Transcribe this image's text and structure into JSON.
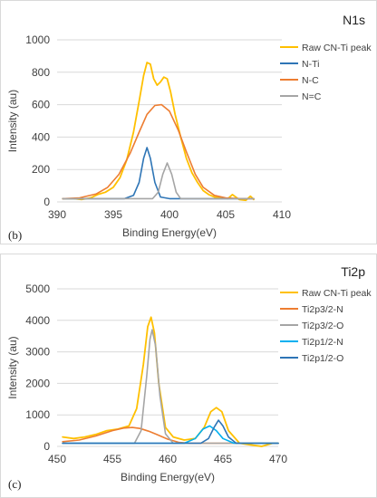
{
  "chart_data": [
    {
      "type": "line",
      "title": "N1s",
      "panel_label": "(b)",
      "xlabel": "Binding Energy(eV)",
      "ylabel": "Intensity (au)",
      "xlim": [
        390,
        410
      ],
      "ylim": [
        0,
        1000
      ],
      "xticks": [
        390,
        395,
        400,
        405,
        410
      ],
      "yticks": [
        0,
        200,
        400,
        600,
        800,
        1000
      ],
      "legend_position": "right",
      "grid": "horizontal",
      "series": [
        {
          "name": "Raw CN-Ti peak",
          "color": "#FFC000",
          "x": [
            390.5,
            391.5,
            392.2,
            393,
            393.6,
            394.3,
            395,
            395.6,
            396.2,
            396.8,
            397.3,
            397.7,
            398,
            398.3,
            398.6,
            398.9,
            399.2,
            399.5,
            399.8,
            400.1,
            400.5,
            401,
            401.5,
            402,
            402.5,
            403,
            403.5,
            404,
            404.6,
            405.2,
            405.6,
            406.2,
            406.8,
            407.2,
            407.5
          ],
          "y": [
            20,
            20,
            15,
            25,
            45,
            60,
            90,
            150,
            260,
            430,
            620,
            780,
            860,
            850,
            760,
            720,
            740,
            770,
            760,
            680,
            540,
            400,
            270,
            180,
            120,
            70,
            45,
            30,
            25,
            20,
            45,
            15,
            10,
            35,
            15
          ]
        },
        {
          "name": "N-Ti",
          "color": "#2E75B6",
          "x": [
            390.5,
            396,
            396.8,
            397.3,
            397.7,
            398,
            398.3,
            398.7,
            399.2,
            400,
            407.5
          ],
          "y": [
            20,
            20,
            40,
            120,
            270,
            335,
            270,
            120,
            30,
            20,
            20
          ]
        },
        {
          "name": "N-C",
          "color": "#ED7D31",
          "x": [
            390.5,
            392,
            393.5,
            394.5,
            395.5,
            396.5,
            397.3,
            398,
            398.7,
            399.3,
            400,
            400.8,
            401.5,
            402.3,
            403,
            404,
            405,
            406.5,
            407.5
          ],
          "y": [
            20,
            25,
            50,
            90,
            170,
            300,
            430,
            540,
            595,
            600,
            560,
            440,
            310,
            170,
            90,
            40,
            25,
            20,
            20
          ]
        },
        {
          "name": "N=C",
          "color": "#A5A5A5",
          "x": [
            390.5,
            398.5,
            399,
            399.4,
            399.8,
            400.2,
            400.6,
            401,
            407.5
          ],
          "y": [
            20,
            20,
            60,
            170,
            240,
            170,
            60,
            20,
            20
          ]
        }
      ]
    },
    {
      "type": "line",
      "title": "Ti2p",
      "panel_label": "(c)",
      "xlabel": "Binding Energy(eV)",
      "ylabel": "Intensity (au)",
      "xlim": [
        450,
        470
      ],
      "ylim": [
        0,
        5000
      ],
      "xticks": [
        450,
        455,
        460,
        465,
        470
      ],
      "yticks": [
        0,
        1000,
        2000,
        3000,
        4000,
        5000
      ],
      "legend_position": "right",
      "grid": "horizontal",
      "series": [
        {
          "name": "Raw CN-Ti peak",
          "color": "#FFC000",
          "x": [
            450.5,
            451.5,
            452.5,
            453.5,
            454.5,
            455.5,
            456.5,
            457.2,
            457.8,
            458.2,
            458.5,
            458.8,
            459.2,
            459.8,
            460.5,
            461.5,
            462.5,
            463.3,
            463.9,
            464.4,
            464.9,
            465.5,
            466.5,
            467.5,
            468.5,
            469.5,
            470
          ],
          "y": [
            300,
            250,
            300,
            380,
            500,
            550,
            650,
            1200,
            2600,
            3800,
            4100,
            3600,
            2000,
            600,
            300,
            200,
            250,
            600,
            1100,
            1230,
            1100,
            500,
            100,
            50,
            0,
            100,
            100
          ]
        },
        {
          "name": "Ti2p3/2-N",
          "color": "#ED7D31",
          "x": [
            450.5,
            452,
            453.5,
            455,
            456,
            456.8,
            457.5,
            458.3,
            459,
            460,
            461,
            462,
            463,
            464,
            466,
            470
          ],
          "y": [
            150,
            200,
            330,
            500,
            580,
            600,
            570,
            480,
            380,
            230,
            130,
            100,
            100,
            100,
            100,
            100
          ]
        },
        {
          "name": "Ti2p3/2-O",
          "color": "#A5A5A5",
          "x": [
            450.5,
            457,
            457.6,
            458.1,
            458.4,
            458.6,
            458.9,
            459.3,
            459.8,
            460.5,
            470
          ],
          "y": [
            100,
            100,
            500,
            2200,
            3400,
            3700,
            3200,
            1600,
            400,
            100,
            100
          ]
        },
        {
          "name": "Ti2p1/2-N",
          "color": "#00B0F0",
          "x": [
            450.5,
            461.5,
            462.5,
            463.2,
            463.8,
            464.4,
            465,
            466,
            470
          ],
          "y": [
            100,
            100,
            250,
            550,
            650,
            500,
            250,
            100,
            100
          ]
        },
        {
          "name": "Ti2p1/2-O",
          "color": "#2E75B6",
          "x": [
            450.5,
            463,
            463.7,
            464.2,
            464.6,
            465,
            465.5,
            466.2,
            470
          ],
          "y": [
            100,
            100,
            250,
            600,
            830,
            650,
            300,
            100,
            100
          ]
        }
      ]
    }
  ]
}
